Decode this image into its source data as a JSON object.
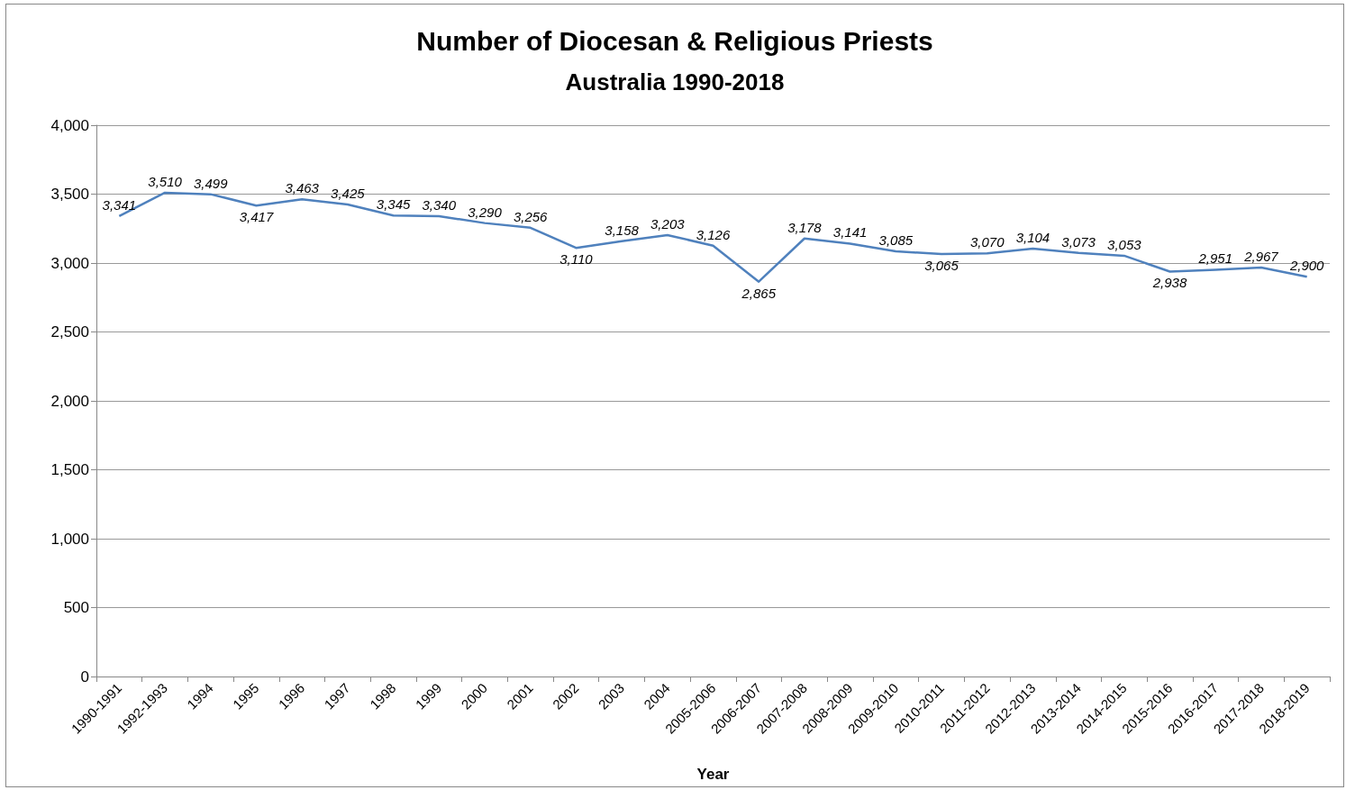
{
  "chart_data": {
    "type": "line",
    "title": "Number of Diocesan & Religious Priests",
    "subtitle": "Australia 1990-2018",
    "xlabel": "Year",
    "categories": [
      "1990-1991",
      "1992-1993",
      "1994",
      "1995",
      "1996",
      "1997",
      "1998",
      "1999",
      "2000",
      "2001",
      "2002",
      "2003",
      "2004",
      "2005-2006",
      "2006-2007",
      "2007-2008",
      "2008-2009",
      "2009-2010",
      "2010-2011",
      "2011-2012",
      "2012-2013",
      "2013-2014",
      "2014-2015",
      "2015-2016",
      "2016-2017",
      "2017-2018",
      "2018-2019"
    ],
    "series": [
      {
        "color": "#4f81bd",
        "values": [
          3341,
          3510,
          3499,
          3417,
          3463,
          3425,
          3345,
          3340,
          3290,
          3256,
          3110,
          3158,
          3203,
          3126,
          2865,
          3178,
          3141,
          3085,
          3065,
          3070,
          3104,
          3073,
          3053,
          2938,
          2951,
          2967,
          2900
        ],
        "value_labels": [
          "3,341",
          "3,510",
          "3,499",
          "3,417",
          "3,463",
          "3,425",
          "3,345",
          "3,340",
          "3,290",
          "3,256",
          "3,110",
          "3,158",
          "3,203",
          "3,126",
          "2,865",
          "3,178",
          "3,141",
          "3,085",
          "3,065",
          "3,070",
          "3,104",
          "3,073",
          "3,053",
          "2,938",
          "2,951",
          "2,967",
          "2,900"
        ]
      }
    ],
    "ylim": [
      0,
      4000
    ],
    "yticks": [
      {
        "value": 0,
        "label": "0"
      },
      {
        "value": 500,
        "label": "500"
      },
      {
        "value": 1000,
        "label": "1,000"
      },
      {
        "value": 1500,
        "label": "1,500"
      },
      {
        "value": 2000,
        "label": "2,000"
      },
      {
        "value": 2500,
        "label": "2,500"
      },
      {
        "value": 3000,
        "label": "3,000"
      },
      {
        "value": 3500,
        "label": "3,500"
      },
      {
        "value": 4000,
        "label": "4,000"
      }
    ],
    "grid": "y",
    "marker": "none",
    "line_style": "solid"
  }
}
